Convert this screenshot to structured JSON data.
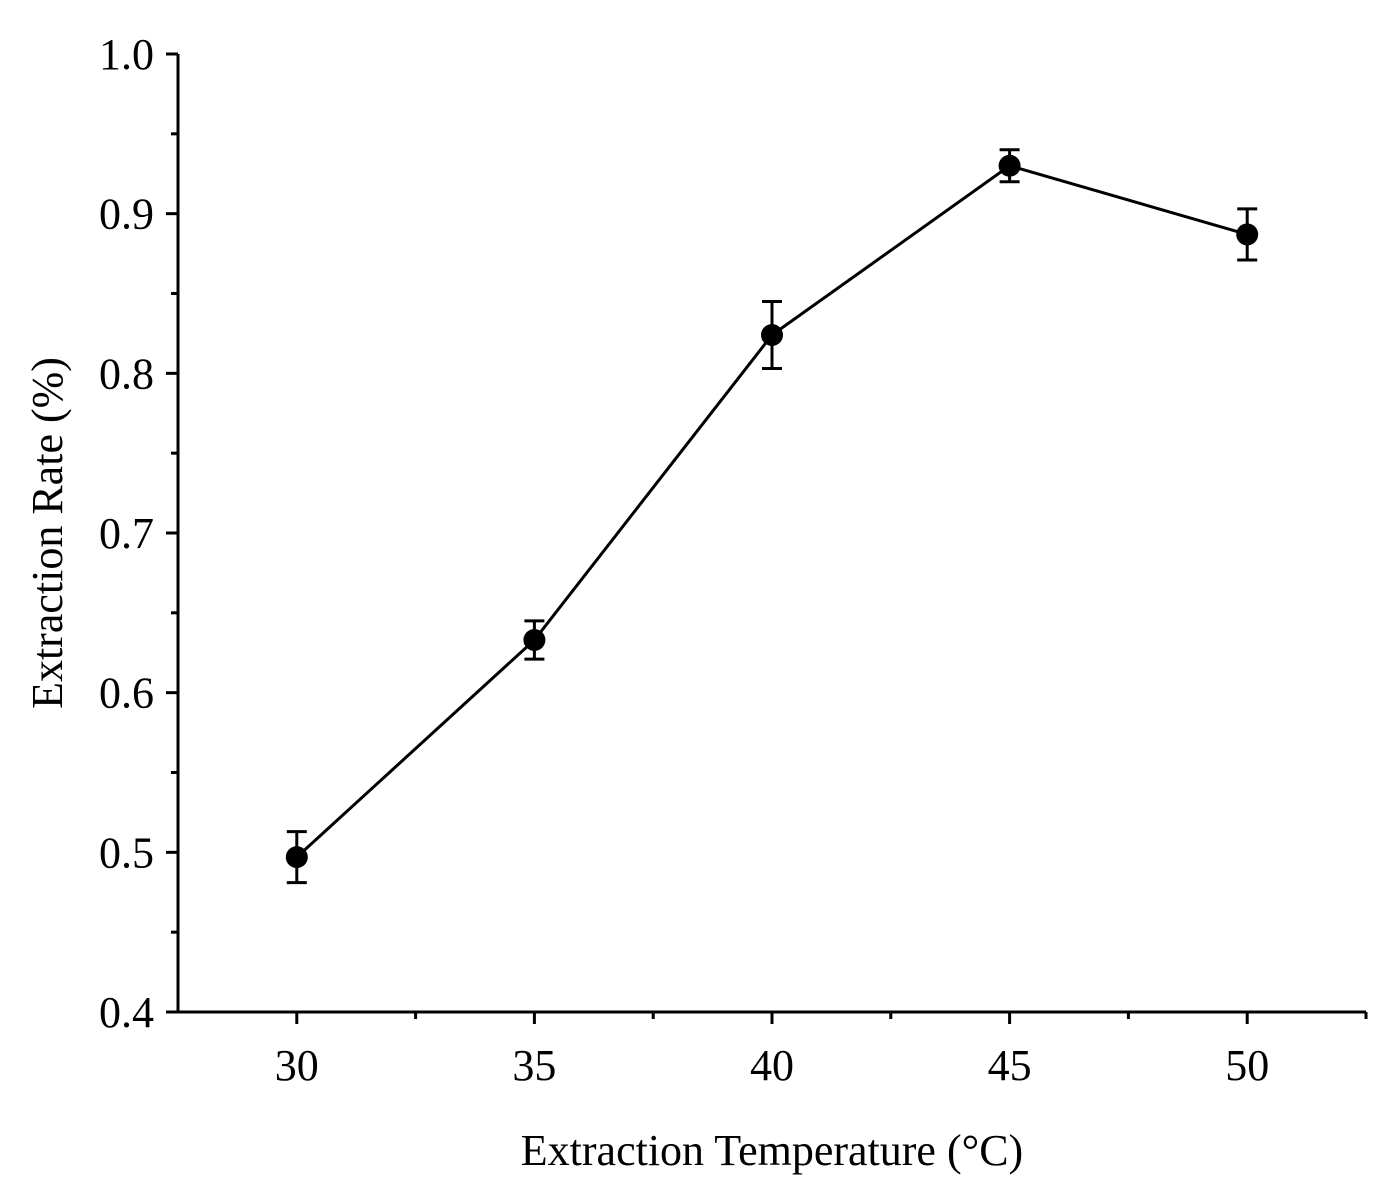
{
  "chart_data": {
    "type": "line",
    "title": "",
    "xlabel": "Extraction Temperature (°C)",
    "ylabel": "Extraction Rate (%)",
    "x": [
      30,
      35,
      40,
      45,
      50
    ],
    "xticks": [
      "30",
      "35",
      "40",
      "45",
      "50"
    ],
    "yticks": [
      "0.4",
      "0.5",
      "0.6",
      "0.7",
      "0.8",
      "0.9",
      "1.0"
    ],
    "xlim": [
      27.5,
      52.5
    ],
    "ylim": [
      0.4,
      1.0
    ],
    "grid": false,
    "series": [
      {
        "name": "Extraction Rate",
        "values": [
          0.497,
          0.633,
          0.824,
          0.93,
          0.887
        ],
        "error": [
          0.016,
          0.012,
          0.021,
          0.01,
          0.016
        ],
        "marker": "circle",
        "color": "#000000"
      }
    ]
  }
}
